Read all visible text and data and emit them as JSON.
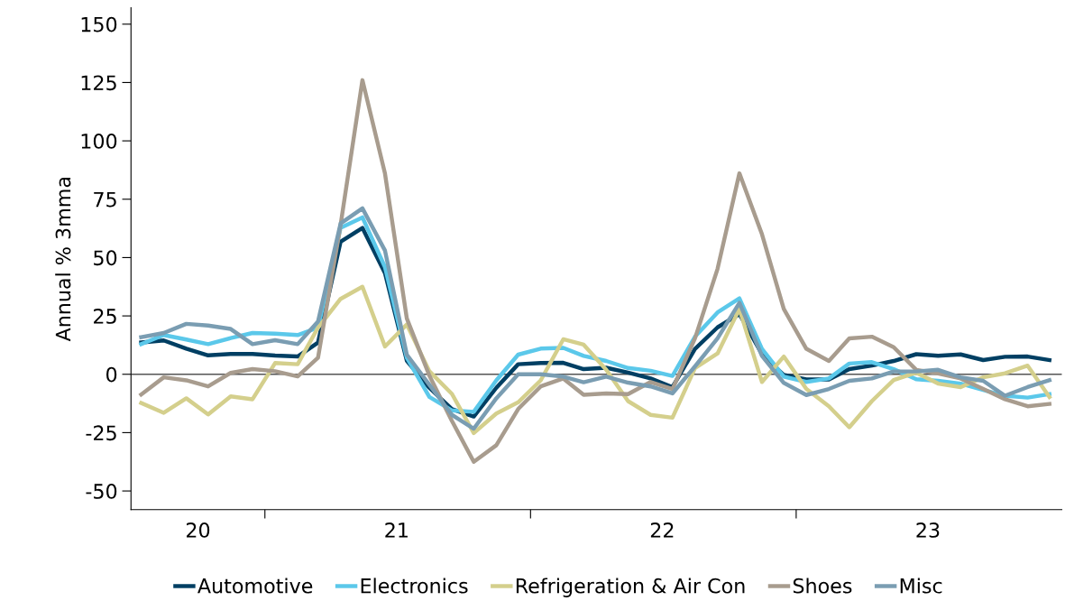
{
  "chart_data": {
    "type": "line",
    "ylabel": "Annual % 3mma",
    "x": [
      "2020-07-15",
      "2020-08-15",
      "2020-09-15",
      "2020-10-15",
      "2020-11-15",
      "2020-12-15",
      "2021-01-15",
      "2021-02-15",
      "2021-03-15",
      "2021-04-15",
      "2021-05-15",
      "2021-06-15",
      "2021-07-15",
      "2021-08-15",
      "2021-09-15",
      "2021-10-15",
      "2021-11-15",
      "2021-12-15",
      "2022-01-15",
      "2022-02-15",
      "2022-03-15",
      "2022-04-15",
      "2022-05-15",
      "2022-06-15",
      "2022-07-15",
      "2022-08-15",
      "2022-09-15",
      "2022-10-15",
      "2022-11-15",
      "2022-12-15",
      "2023-01-15",
      "2023-02-15",
      "2023-03-15",
      "2023-04-15",
      "2023-05-15",
      "2023-06-15",
      "2023-07-15",
      "2023-08-15",
      "2023-09-15",
      "2023-10-15",
      "2023-11-15",
      "2023-12-15"
    ],
    "series": [
      {
        "name": "Automotive",
        "color": "#003f63",
        "values": [
          13.6,
          14.5,
          11,
          8.1,
          8.7,
          8.7,
          8,
          7.6,
          13.6,
          56.8,
          62.7,
          43.3,
          5.8,
          -5.8,
          -14.9,
          -18.1,
          -5.8,
          4.3,
          4.8,
          4.9,
          2.2,
          2.8,
          0.7,
          -1.8,
          -5.5,
          10.9,
          20.1,
          25.8,
          8.6,
          -0.3,
          -2.2,
          -2.2,
          2.2,
          3.7,
          5.7,
          8.6,
          7.9,
          8.5,
          6.1,
          7.5,
          7.6,
          6.1
        ]
      },
      {
        "name": "Electronics",
        "color": "#5bc8ea",
        "values": [
          12.9,
          16.8,
          14.9,
          12.9,
          15.5,
          17.7,
          17.4,
          16.8,
          20,
          62.7,
          67.2,
          45.9,
          7.1,
          -9.7,
          -15.5,
          -16.1,
          -2.6,
          8.4,
          11,
          11.3,
          7.9,
          5.7,
          2.7,
          1.5,
          -0.7,
          16.1,
          26.5,
          32.5,
          10.9,
          -1,
          -3.3,
          -1.8,
          4.6,
          5.2,
          2.2,
          -2.1,
          -2.8,
          -4,
          -6.7,
          -9.2,
          -10,
          -8.5
        ]
      },
      {
        "name": "Refrigeration & Air Con",
        "color": "#d4cf8c",
        "values": [
          -12.3,
          -16.5,
          -10.3,
          -17.2,
          -9.5,
          -10.7,
          4.8,
          4.3,
          20,
          32.3,
          37.5,
          11.9,
          21.3,
          1.3,
          -8.4,
          -25.2,
          -16.8,
          -12,
          -2.6,
          15,
          12.7,
          1.9,
          -11.5,
          -17.4,
          -18.6,
          2.7,
          8.9,
          28,
          -3.3,
          7.6,
          -6.3,
          -13.7,
          -22.7,
          -11.5,
          -2.5,
          0.7,
          -4,
          -5.5,
          -1.3,
          0.4,
          3.7,
          -9.7
        ]
      },
      {
        "name": "Shoes",
        "color": "#a89c8e",
        "values": [
          -8.7,
          -1.3,
          -2.6,
          -5.2,
          0.6,
          2.2,
          1.3,
          -0.9,
          7.1,
          64,
          126,
          86,
          23.9,
          -0.6,
          -20,
          -37.5,
          -30.4,
          -14.9,
          -5.2,
          -1.8,
          -8.8,
          -8.2,
          -8.5,
          -3.3,
          -6.3,
          15.4,
          45.2,
          86.1,
          60,
          28,
          10.9,
          5.7,
          15.4,
          16.1,
          11.6,
          1.9,
          0.4,
          -1.8,
          -6.3,
          -10.7,
          -13.7,
          -12.7
        ]
      },
      {
        "name": "Misc",
        "color": "#7a9db2",
        "values": [
          15.9,
          17.7,
          21.6,
          20.9,
          19.4,
          12.9,
          14.6,
          12.9,
          22.6,
          64.6,
          71.1,
          53,
          8.4,
          -4.5,
          -17.4,
          -23.3,
          -10.3,
          0,
          0,
          -1,
          -3.4,
          -1,
          -3.6,
          -5.2,
          -8.2,
          3.4,
          15.4,
          30.6,
          7.9,
          -3.7,
          -8.9,
          -6.3,
          -2.8,
          -1.8,
          1.2,
          1.2,
          1.9,
          -1.3,
          -2.8,
          -9.2,
          -5.5,
          -2.5
        ]
      }
    ],
    "xlim": [
      "2020-07-01",
      "2024-01-01"
    ],
    "xticks": [
      {
        "value": "2021-01-01",
        "label": null
      },
      {
        "value": "2022-01-01",
        "label": null
      },
      {
        "value": "2023-01-01",
        "label": null
      },
      {
        "value": "2020-10-01",
        "label": "20"
      },
      {
        "value": "2021-07-01",
        "label": "21"
      },
      {
        "value": "2022-07-01",
        "label": "22"
      },
      {
        "value": "2023-07-01",
        "label": "23"
      }
    ],
    "ylim": [
      -58,
      157
    ],
    "yticks": [
      -50,
      -25,
      0,
      25,
      50,
      75,
      100,
      125,
      150
    ],
    "ref_lines": [
      {
        "axis": "y",
        "value": 0,
        "color": "#555555"
      }
    ],
    "grid": false,
    "legend": "bottom",
    "marker": "none",
    "line_style": "solid"
  }
}
